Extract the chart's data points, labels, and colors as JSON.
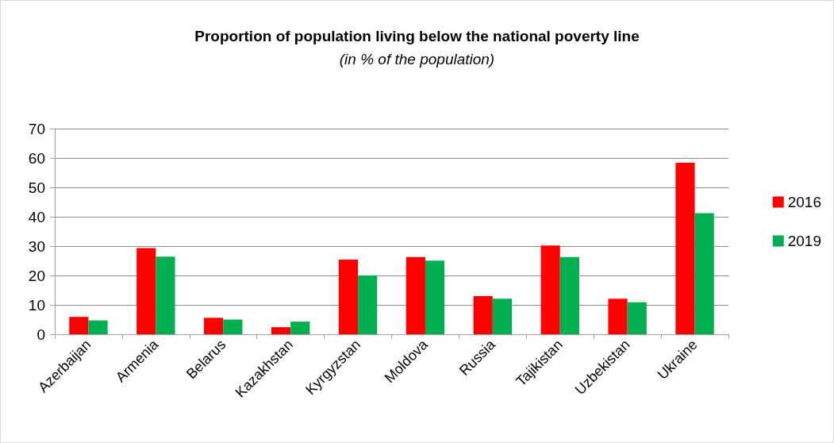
{
  "chart_data": {
    "type": "bar",
    "title": "Proportion of population living below the national poverty line",
    "subtitle": "(in % of the population)",
    "categories": [
      "Azerbaijan",
      "Armenia",
      "Belarus",
      "Kazakhstan",
      "Kyrgyzstan",
      "Moldova",
      "Russia",
      "Tajikistan",
      "Uzbekistan",
      "Ukraine"
    ],
    "series": [
      {
        "name": "2016",
        "color": "#ff0000",
        "values": [
          5.9,
          29.3,
          5.6,
          2.4,
          25.4,
          26.3,
          13.0,
          30.2,
          12.1,
          58.4
        ]
      },
      {
        "name": "2019",
        "color": "#00b050",
        "values": [
          4.7,
          26.4,
          5.0,
          4.3,
          20.0,
          25.1,
          12.1,
          26.3,
          10.9,
          41.2
        ]
      }
    ],
    "ylim": [
      0,
      70
    ],
    "yticks": [
      0,
      10,
      20,
      30,
      40,
      50,
      60,
      70
    ],
    "grid": "y",
    "legend": "right"
  }
}
